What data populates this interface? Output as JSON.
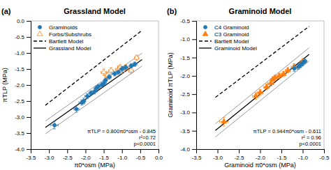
{
  "chart_data": [
    {
      "type": "scatter",
      "title": "Grassland Model",
      "xlabel": "π0*osm (MPa)",
      "ylabel": "πTLP (MPa)",
      "xlim": [
        -3.5,
        0.0
      ],
      "ylim": [
        -4.0,
        0.0
      ],
      "xticks": [
        -3.5,
        {
          "value": -3.0,
          "label": "-3.0"
        },
        -2.5,
        {
          "value": -2.0,
          "label": "-2.0"
        },
        -1.5,
        {
          "value": -1.0,
          "label": "-1.0"
        },
        -0.5,
        {
          "value": 0.0,
          "label": "0.0"
        }
      ],
      "yticks": [
        {
          "value": -4.0,
          "label": "-4.0"
        },
        -3.5,
        {
          "value": -3.0,
          "label": "-3.0"
        },
        -2.5,
        {
          "value": -2.0,
          "label": "-2.0"
        },
        -1.5,
        {
          "value": -1.0,
          "label": "-1.0"
        },
        -0.5,
        {
          "value": 0.0,
          "label": "0.0"
        }
      ],
      "grid": false,
      "legend": "upper left",
      "annotations": [
        "(a)",
        "πTLP = 0.800π0*osm - 0.845",
        "r²=0.72",
        "p<0.0001"
      ],
      "series": [
        {
          "name": "Graminoids",
          "type": "scatter",
          "marker": "circle",
          "x": [
            -2.85,
            -2.25,
            -2.1,
            -2.05,
            -1.95,
            -1.85,
            -1.75,
            -1.7,
            -1.65,
            -1.55,
            -1.5,
            -1.45,
            -1.35,
            -1.2,
            -1.1,
            -1.0,
            -0.9,
            -0.75,
            -0.65
          ],
          "values": [
            -3.25,
            -2.75,
            -2.55,
            -2.5,
            -2.35,
            -2.25,
            -2.2,
            -2.1,
            -2.05,
            -2.0,
            -1.95,
            -1.85,
            -1.75,
            -1.65,
            -1.6,
            -1.5,
            -1.45,
            -1.4,
            -1.35
          ],
          "x_error": [
            0.1,
            0.07,
            0.08,
            0.06,
            0.07,
            0.06,
            0.07,
            0.06,
            0.05,
            0.06,
            0.07,
            0.05,
            0.06,
            0.07,
            0.05,
            0.06,
            0.07,
            0.05,
            0.06
          ],
          "y_error": [
            0.12,
            0.1,
            0.08,
            0.09,
            0.08,
            0.07,
            0.08,
            0.07,
            0.07,
            0.07,
            0.07,
            0.07,
            0.07,
            0.07,
            0.07,
            0.08,
            0.07,
            0.07,
            0.07
          ]
        },
        {
          "name": "Forbs/Subshrubs",
          "type": "scatter",
          "marker": "triangle-open",
          "x": [
            -1.5,
            -1.4,
            -1.3,
            -1.1,
            -1.05,
            -1.0,
            -0.9,
            -0.75,
            -0.6
          ],
          "values": [
            -1.6,
            -1.7,
            -1.55,
            -1.5,
            -1.45,
            -1.55,
            -1.45,
            -1.55,
            -1.15
          ],
          "x_error": [
            0.08,
            0.07,
            0.07,
            0.08,
            0.07,
            0.06,
            0.07,
            0.07,
            0.06
          ],
          "y_error": [
            0.1,
            0.1,
            0.09,
            0.09,
            0.08,
            0.09,
            0.08,
            0.09,
            0.08
          ]
        },
        {
          "name": "Bartlett Model",
          "type": "line",
          "line_style": "dashed",
          "color": "#000000",
          "x": [
            -3.1,
            -0.45
          ],
          "values": [
            -2.6332,
            -0.2959
          ]
        },
        {
          "name": "Grassland Model",
          "type": "line",
          "line_style": "solid",
          "color": "#000000",
          "x": [
            -3.1,
            -0.45
          ],
          "values": [
            -3.325,
            -1.205
          ]
        },
        {
          "type": "line",
          "line_style": "solid",
          "color": "#999999",
          "x": [
            -3.1,
            -0.45
          ],
          "values": [
            -3.125,
            -1.005
          ]
        },
        {
          "type": "line",
          "line_style": "solid",
          "color": "#999999",
          "x": [
            -3.1,
            -0.45
          ],
          "values": [
            -3.525,
            -1.405
          ]
        }
      ]
    },
    {
      "type": "scatter",
      "title": "Graminoid Model",
      "xlabel": "Graminoid π0*osm (MPa)",
      "ylabel": "Graminoid πTLP (MPa)",
      "xlim": [
        -3.5,
        -0.5
      ],
      "ylim": [
        -4.0,
        -0.5
      ],
      "xticks": [
        -3.5,
        {
          "value": -3.0,
          "label": "-3.0"
        },
        -2.5,
        {
          "value": -2.0,
          "label": "-2.0"
        },
        -1.5,
        {
          "value": -1.0,
          "label": "-1.0"
        },
        -0.5
      ],
      "yticks": [
        {
          "value": -4.0,
          "label": "-4.0"
        },
        -3.5,
        {
          "value": -3.0,
          "label": "-3.0"
        },
        -2.5,
        {
          "value": -2.0,
          "label": "-2.0"
        },
        -1.5,
        {
          "value": -1.0,
          "label": "-1.0"
        },
        -0.5
      ],
      "grid": false,
      "legend": "upper left",
      "annotations": [
        "(b)",
        "πTLP = 0.944π0*osm - 0.611",
        "r² = 0.96",
        "p<0.0001"
      ],
      "series": [
        {
          "name": "C4 Graminoid",
          "type": "scatter",
          "marker": "circle",
          "x": [
            -1.2,
            -1.1,
            -1.05,
            -1.0,
            -0.95
          ],
          "values": [
            -1.8,
            -1.75,
            -1.7,
            -1.65,
            -1.6
          ],
          "x_error": [
            0.07,
            0.06,
            0.06,
            0.06,
            0.05
          ],
          "y_error": [
            0.08,
            0.07,
            0.07,
            0.07,
            0.06
          ]
        },
        {
          "name": "C3 Graminoid",
          "type": "scatter",
          "marker": "triangle",
          "x": [
            -2.85,
            -2.1,
            -2.0,
            -1.85,
            -1.75,
            -1.7,
            -1.65,
            -1.55,
            -1.45,
            -1.35,
            -1.2,
            -1.0
          ],
          "values": [
            -3.25,
            -2.55,
            -2.45,
            -2.3,
            -2.2,
            -2.1,
            -2.05,
            -2.0,
            -1.95,
            -1.85,
            -1.75,
            -1.6
          ],
          "x_error": [
            0.1,
            0.08,
            0.07,
            0.07,
            0.07,
            0.06,
            0.06,
            0.06,
            0.06,
            0.06,
            0.07,
            0.06
          ],
          "y_error": [
            0.12,
            0.09,
            0.08,
            0.08,
            0.08,
            0.07,
            0.07,
            0.07,
            0.07,
            0.07,
            0.08,
            0.07
          ]
        },
        {
          "name": "Bartlett Model",
          "type": "line",
          "line_style": "dashed",
          "color": "#000000",
          "x": [
            -3.05,
            -0.85
          ],
          "values": [
            -2.5891,
            -0.6487
          ]
        },
        {
          "name": "Graminoid Model",
          "type": "line",
          "line_style": "solid",
          "color": "#000000",
          "x": [
            -3.05,
            -0.85
          ],
          "values": [
            -3.4902,
            -1.4134
          ]
        },
        {
          "type": "line",
          "line_style": "solid",
          "color": "#999999",
          "x": [
            -3.05,
            -0.85
          ],
          "values": [
            -3.3102,
            -1.2334
          ]
        },
        {
          "type": "line",
          "line_style": "solid",
          "color": "#999999",
          "x": [
            -3.05,
            -0.85
          ],
          "values": [
            -3.6702,
            -1.5934
          ]
        }
      ]
    }
  ]
}
